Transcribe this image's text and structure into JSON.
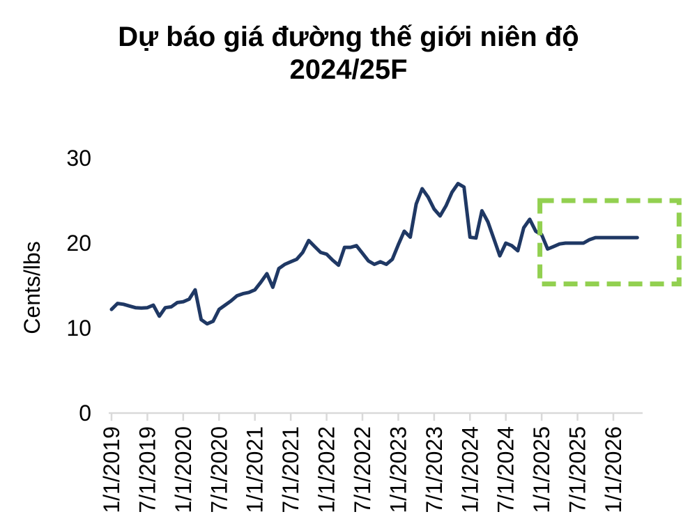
{
  "title": {
    "line1": "Dự báo giá đường thế giới niên độ",
    "line2": "2024/25F"
  },
  "chart_data": {
    "type": "line",
    "title": "Dự báo giá đường thế giới niên độ 2024/25F",
    "xlabel": "",
    "ylabel": "Cents/lbs",
    "ylim": [
      0,
      33
    ],
    "y_ticks": [
      0,
      10,
      20,
      30
    ],
    "x_tick_labels": [
      "1/1/2019",
      "7/1/2019",
      "1/1/2020",
      "7/1/2020",
      "1/1/2021",
      "7/1/2021",
      "1/1/2022",
      "7/1/2022",
      "1/1/2023",
      "7/1/2023",
      "1/1/2024",
      "7/1/2024",
      "1/1/2025",
      "7/1/2025",
      "1/1/2026"
    ],
    "grid": false,
    "legend_position": "none",
    "series": [
      {
        "frequency": "monthly",
        "start": "1/1/2019",
        "end": "5/1/2026",
        "values": [
          12.2,
          12.9,
          12.8,
          12.6,
          12.4,
          12.35,
          12.4,
          12.7,
          11.4,
          12.4,
          12.5,
          13.0,
          13.1,
          13.4,
          14.5,
          11.0,
          10.5,
          10.8,
          12.2,
          12.7,
          13.2,
          13.8,
          14.05,
          14.2,
          14.5,
          15.4,
          16.4,
          14.8,
          17.0,
          17.5,
          17.8,
          18.1,
          18.9,
          20.3,
          19.6,
          18.9,
          18.7,
          18.0,
          17.4,
          19.5,
          19.5,
          19.7,
          18.8,
          17.9,
          17.5,
          17.8,
          17.5,
          18.1,
          19.8,
          21.4,
          20.7,
          24.6,
          26.4,
          25.4,
          24.0,
          23.2,
          24.4,
          26.0,
          27.0,
          26.6,
          20.7,
          20.6,
          23.8,
          22.5,
          20.5,
          18.5,
          20.0,
          19.7,
          19.1,
          21.8,
          22.8,
          21.4,
          21.0,
          19.3,
          19.6,
          19.9,
          20.0,
          20.0,
          20.0,
          20.0,
          20.4,
          20.65,
          20.65,
          20.65,
          20.65,
          20.65,
          20.65,
          20.65,
          20.65
        ]
      }
    ],
    "annotations": {
      "forecast_box": {
        "shape": "dashed-rectangle",
        "x0_month_index": 71.7,
        "x1_month_index": 95.0,
        "y0_value": 15.2,
        "y1_value": 25.0
      }
    },
    "colors": {
      "line": "#1F3864",
      "forecast_box": "#92D050",
      "axis": "#D9D9D9",
      "text": "#000000"
    }
  }
}
